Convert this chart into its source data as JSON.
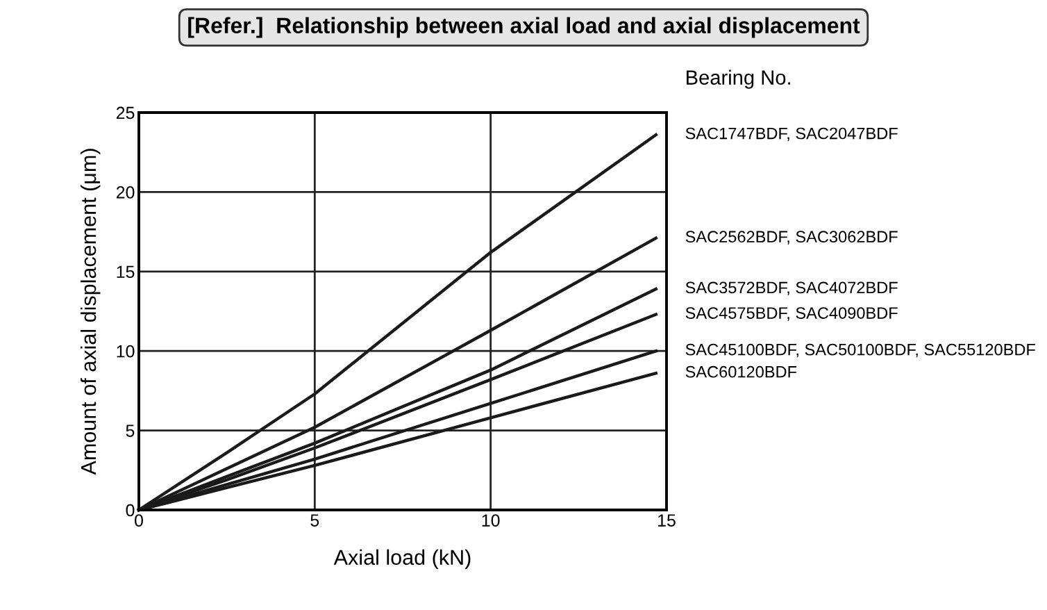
{
  "chart_data": {
    "type": "line",
    "title": "[Refer.]  Relationship between axial load and axial displacement",
    "xlabel": "Axial load (kN)",
    "ylabel": "Amount of axial displacement (μm)",
    "legend_title": "Bearing No.",
    "xlim": [
      0,
      15
    ],
    "ylim": [
      0,
      25
    ],
    "xticks": [
      0,
      5,
      10,
      15
    ],
    "yticks": [
      0,
      5,
      10,
      15,
      20,
      25
    ],
    "grid": true,
    "marker": "none",
    "line_style": "solid",
    "series": [
      {
        "name": "SAC1747BDF, SAC2047BDF",
        "color": "#1a1a1a",
        "x": [
          0,
          2.5,
          5,
          10,
          14.7
        ],
        "values": [
          0,
          3.6,
          7.3,
          16.2,
          23.6
        ]
      },
      {
        "name": "SAC2562BDF, SAC3062BDF",
        "color": "#1a1a1a",
        "x": [
          0,
          2.5,
          5,
          10,
          14.7
        ],
        "values": [
          0,
          2.6,
          5.2,
          11.3,
          17.1
        ]
      },
      {
        "name": "SAC3572BDF, SAC4072BDF",
        "color": "#1a1a1a",
        "x": [
          0,
          2.5,
          5,
          10,
          14.7
        ],
        "values": [
          0,
          2.1,
          4.2,
          8.8,
          13.9
        ]
      },
      {
        "name": "SAC4575BDF, SAC4090BDF",
        "color": "#1a1a1a",
        "x": [
          0,
          2.5,
          5,
          10,
          14.7
        ],
        "values": [
          0,
          1.9,
          3.9,
          8.2,
          12.3
        ]
      },
      {
        "name": "SAC45100BDF, SAC50100BDF, SAC55120BDF",
        "color": "#1a1a1a",
        "x": [
          0,
          2.5,
          5,
          10,
          14.7
        ],
        "values": [
          0,
          1.6,
          3.2,
          6.7,
          10.0
        ]
      },
      {
        "name": "SAC60120BDF",
        "color": "#1a1a1a",
        "x": [
          0,
          2.5,
          5,
          10,
          14.7
        ],
        "values": [
          0,
          1.4,
          2.8,
          5.8,
          8.6
        ]
      }
    ]
  }
}
